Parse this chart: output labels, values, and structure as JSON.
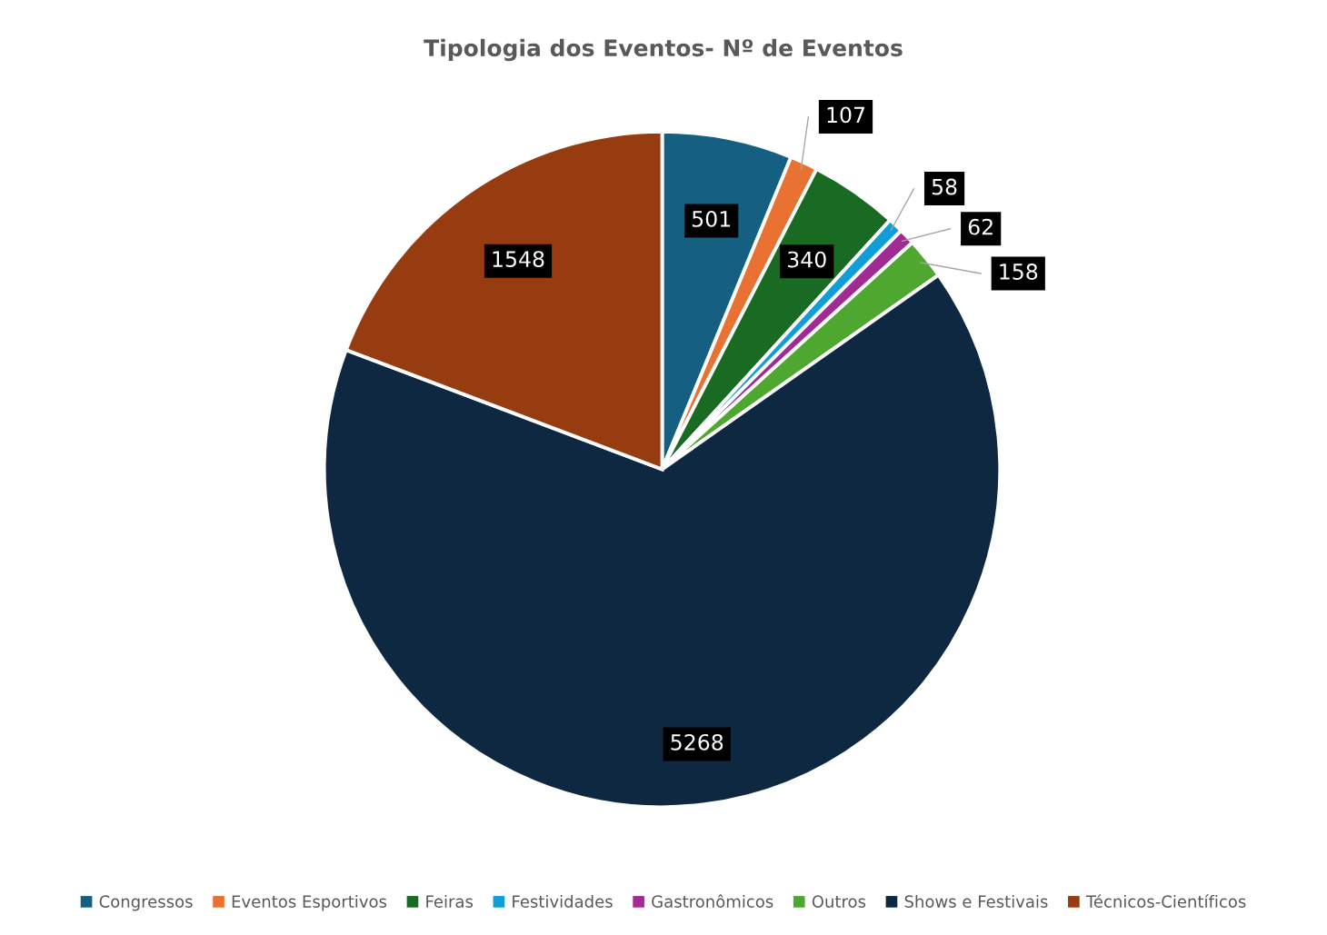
{
  "chart_data": {
    "type": "pie",
    "title": "Tipologia dos Eventos- Nº de Eventos",
    "categories": [
      "Congressos",
      "Eventos Esportivos",
      "Feiras",
      "Festividades",
      "Gastronômicos",
      "Outros",
      "Shows e Festivais",
      "Técnicos-Científicos"
    ],
    "values": [
      501,
      107,
      340,
      58,
      62,
      158,
      5268,
      1548
    ],
    "colors": [
      "#156082",
      "#e97132",
      "#196b24",
      "#0f9ed5",
      "#a02b93",
      "#4ea72e",
      "#0e2841",
      "#973b10"
    ],
    "data_labels": true,
    "legend": "bottom"
  }
}
